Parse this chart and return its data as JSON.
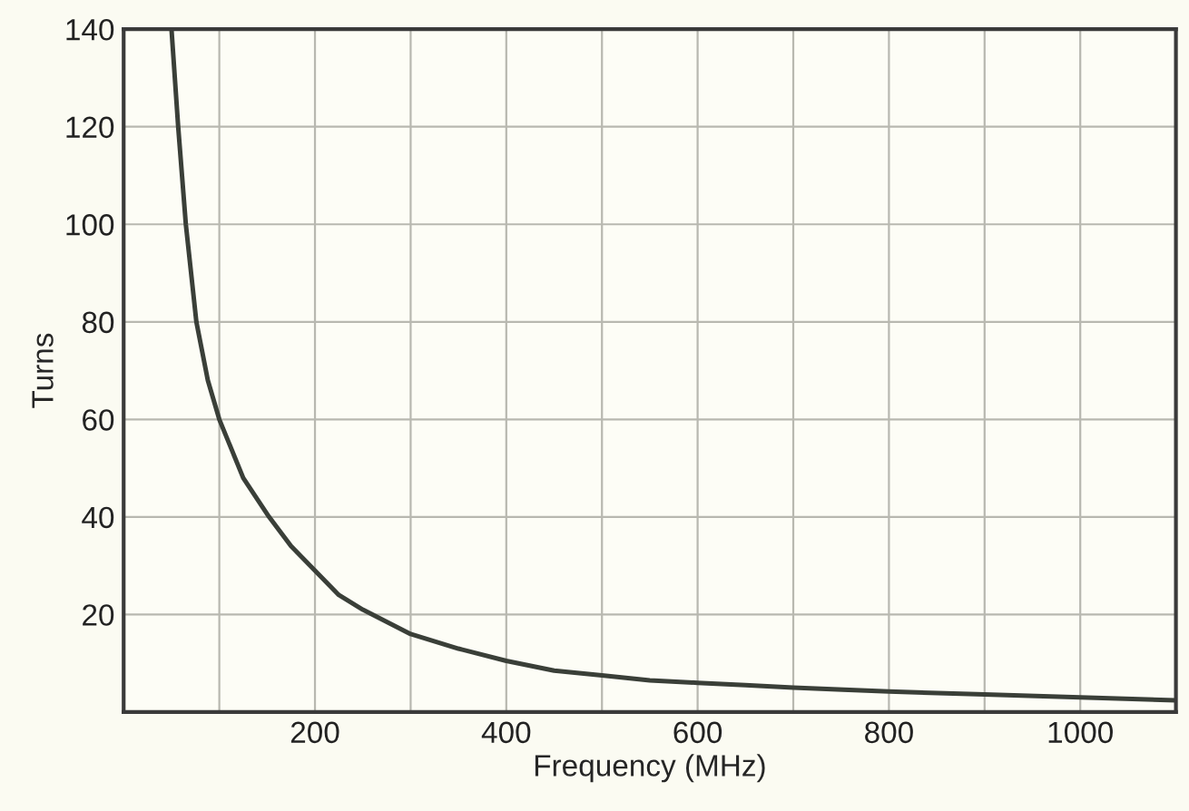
{
  "chart_data": {
    "type": "line",
    "xlabel": "Frequency (MHz)",
    "ylabel": "Turns",
    "x": [
      50,
      57,
      65,
      76,
      88,
      100,
      125,
      152,
      175,
      200,
      225,
      250,
      300,
      350,
      400,
      450,
      500,
      550,
      600,
      650,
      700,
      800,
      900,
      1000,
      1100
    ],
    "series": [
      {
        "color": "#3a3f38",
        "values": [
          140,
          120,
          100,
          80,
          68,
          60,
          48,
          40,
          34,
          29,
          24,
          21,
          16,
          13,
          10.5,
          8.5,
          7.5,
          6.5,
          6,
          5.5,
          5,
          4.2,
          3.6,
          3,
          2.4
        ]
      }
    ],
    "xlim": [
      0,
      1100
    ],
    "ylim": [
      0,
      140
    ],
    "xticks": [
      {
        "value": 100,
        "label": null
      },
      200,
      {
        "value": 300,
        "label": null
      },
      400,
      {
        "value": 500,
        "label": null
      },
      600,
      {
        "value": 700,
        "label": null
      },
      800,
      {
        "value": 900,
        "label": null
      },
      1000
    ],
    "yticks": [
      20,
      40,
      60,
      80,
      100,
      120,
      140
    ],
    "grid": true,
    "marker": "none",
    "line_style": "solid"
  }
}
